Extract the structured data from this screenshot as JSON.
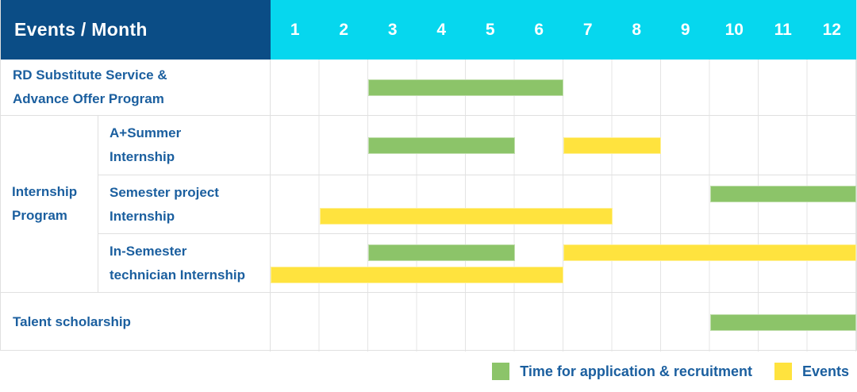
{
  "colors": {
    "header_bg": "#0B4D86",
    "months_bg": "#06D7EE",
    "recruitment": "#8CC469",
    "event": "#FFE33E",
    "text": "#1B5F9F"
  },
  "chart_data": {
    "type": "bar",
    "variant": "gantt",
    "title": "Events / Month",
    "x_axis": {
      "label": "Month",
      "ticks": [
        "1",
        "2",
        "3",
        "4",
        "5",
        "6",
        "7",
        "8",
        "9",
        "10",
        "11",
        "12"
      ],
      "range": [
        1,
        12
      ]
    },
    "rows": [
      {
        "type": "simple",
        "label": "RD Substitute Service & Advance Offer Program",
        "label_lines": [
          "RD Substitute Service &",
          "Advance Offer Program"
        ],
        "bars": [
          {
            "series": "recruitment",
            "start_month": 3,
            "end_month": 6,
            "lane": "single"
          }
        ]
      },
      {
        "type": "group",
        "label": "Internship Program",
        "label_lines": [
          "Internship",
          "Program"
        ],
        "subrows": [
          {
            "label": "A+Summer Internship",
            "label_lines": [
              "A+Summer",
              "Internship"
            ],
            "bars": [
              {
                "series": "recruitment",
                "start_month": 3,
                "end_month": 5,
                "lane": "single"
              },
              {
                "series": "event",
                "start_month": 7,
                "end_month": 8,
                "lane": "single"
              }
            ]
          },
          {
            "label": "Semester project Internship",
            "label_lines": [
              "Semester project",
              "Internship"
            ],
            "bars": [
              {
                "series": "recruitment",
                "start_month": 10,
                "end_month": 12,
                "lane": "top"
              },
              {
                "series": "event",
                "start_month": 2,
                "end_month": 7,
                "lane": "bottom"
              }
            ]
          },
          {
            "label": "In-Semester technician Internship",
            "label_lines": [
              "In-Semester",
              "technician Internship"
            ],
            "bars": [
              {
                "series": "recruitment",
                "start_month": 3,
                "end_month": 5,
                "lane": "top"
              },
              {
                "series": "event",
                "start_month": 7,
                "end_month": 12,
                "lane": "top"
              },
              {
                "series": "event",
                "start_month": 1,
                "end_month": 6,
                "lane": "bottom"
              }
            ]
          }
        ]
      },
      {
        "type": "simple",
        "label": "Talent scholarship",
        "label_lines": [
          "Talent scholarship"
        ],
        "bars": [
          {
            "series": "recruitment",
            "start_month": 10,
            "end_month": 12,
            "lane": "single"
          }
        ]
      }
    ],
    "legend": [
      {
        "series": "recruitment",
        "label": "Time for application & recruitment",
        "color": "#8CC469"
      },
      {
        "series": "event",
        "label": "Events",
        "color": "#FFE33E"
      }
    ],
    "legend_position": "bottom-right",
    "grid": true
  }
}
